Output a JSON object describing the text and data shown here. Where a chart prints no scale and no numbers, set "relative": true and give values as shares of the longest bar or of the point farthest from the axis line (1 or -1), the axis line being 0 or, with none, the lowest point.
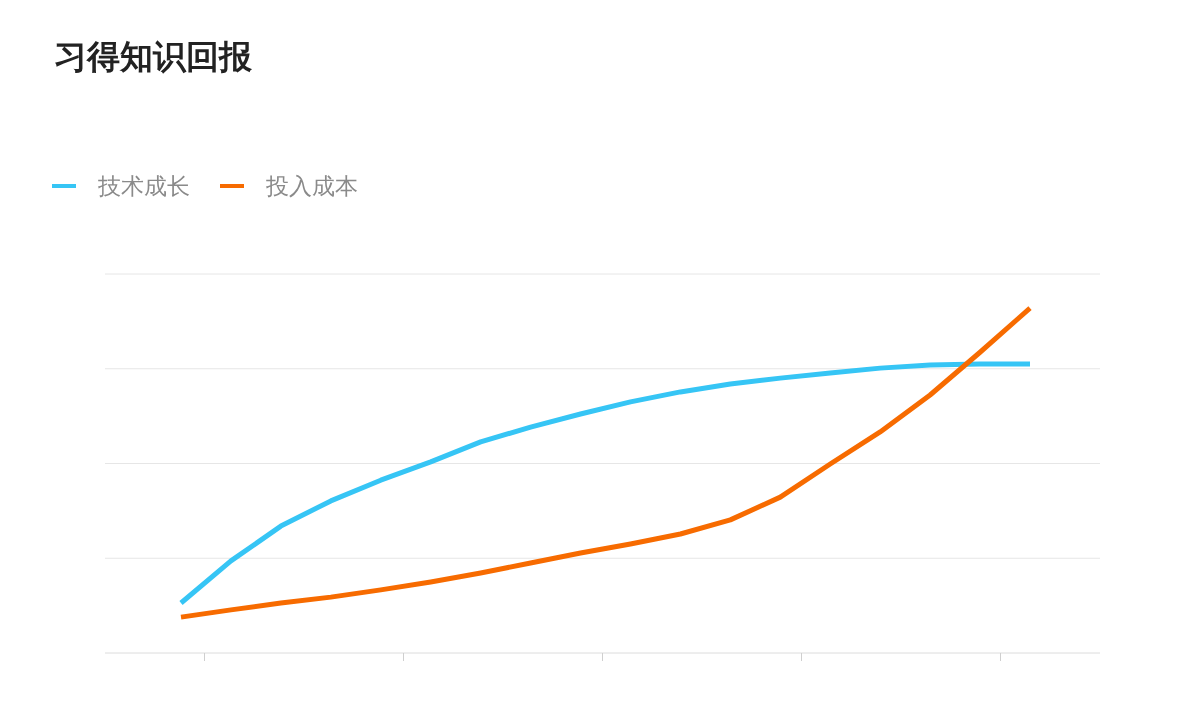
{
  "chart_data": {
    "type": "line",
    "title": "习得知识回报",
    "relative": true,
    "grid": "y",
    "legend": "top left",
    "categories": [
      null,
      null,
      null,
      null,
      null,
      null,
      null,
      null,
      null,
      null,
      null,
      null,
      null,
      null,
      null,
      null,
      null,
      null
    ],
    "series": [
      {
        "name": "技术成长",
        "color": "#36c5f5",
        "values": [
          0.145,
          0.267,
          0.368,
          0.441,
          0.501,
          0.554,
          0.612,
          0.655,
          0.693,
          0.728,
          0.757,
          0.78,
          0.797,
          0.812,
          0.826,
          0.835,
          0.838,
          0.838
        ]
      },
      {
        "name": "投入成本",
        "color": "#f76b00",
        "values": [
          0.104,
          0.125,
          0.145,
          0.162,
          0.183,
          0.206,
          0.232,
          0.261,
          0.29,
          0.316,
          0.345,
          0.386,
          0.452,
          0.548,
          0.641,
          0.748,
          0.872,
          1.0
        ]
      }
    ]
  }
}
